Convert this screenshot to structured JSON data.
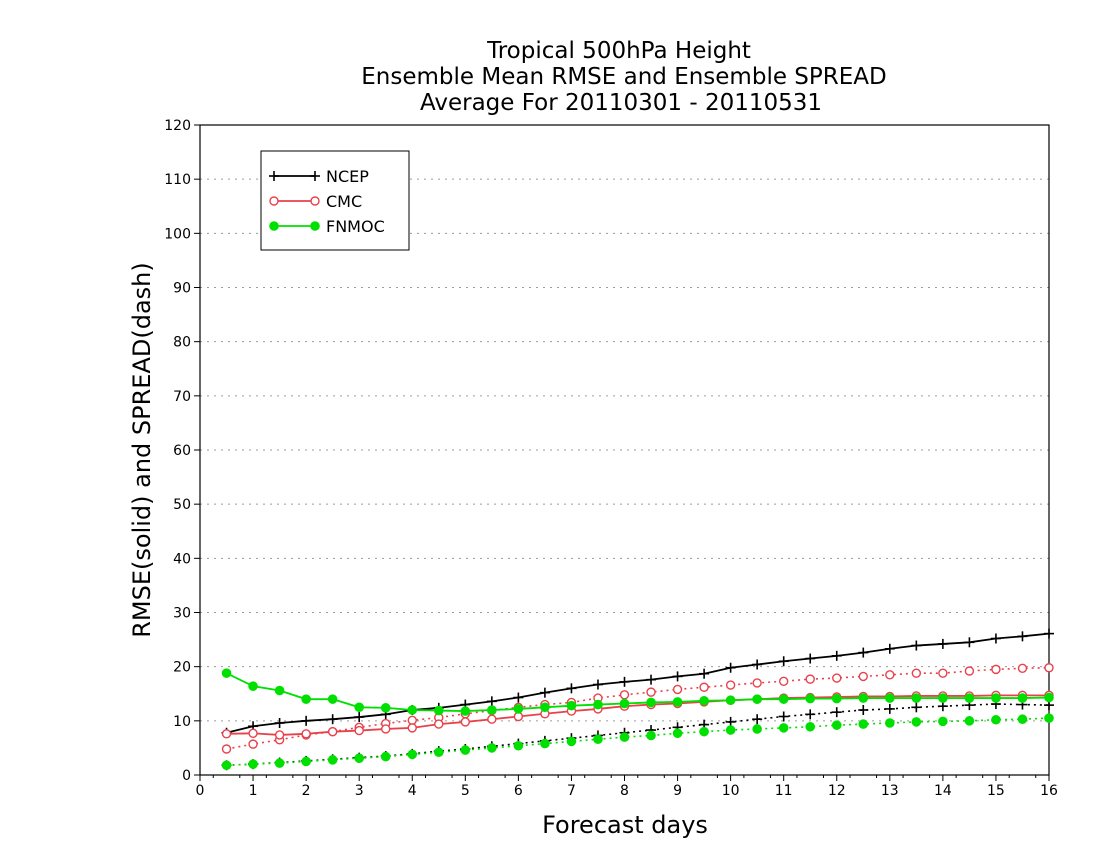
{
  "chart_data": {
    "type": "line",
    "title_lines": [
      "Tropical 500hPa Height",
      "Ensemble Mean RMSE and Ensemble SPREAD",
      "Average For 20110301 - 20110531"
    ],
    "xlabel": "Forecast days",
    "ylabel": "RMSE(solid) and SPREAD(dash)",
    "xlim": [
      0,
      16
    ],
    "ylim": [
      0,
      120
    ],
    "x_ticks": [
      0,
      1,
      2,
      3,
      4,
      5,
      6,
      7,
      8,
      9,
      10,
      11,
      12,
      13,
      14,
      15,
      16
    ],
    "y_ticks": [
      0,
      10,
      20,
      30,
      40,
      50,
      60,
      70,
      80,
      90,
      100,
      110,
      120
    ],
    "grid": "horizontal-dotted",
    "legend_position": "top-left",
    "x": [
      0.5,
      1,
      1.5,
      2,
      2.5,
      3,
      3.5,
      4,
      4.5,
      5,
      5.5,
      6,
      6.5,
      7,
      7.5,
      8,
      8.5,
      9,
      9.5,
      10,
      10.5,
      11,
      11.5,
      12,
      12.5,
      13,
      13.5,
      14,
      14.5,
      15,
      15.5,
      16
    ],
    "series": [
      {
        "name": "NCEP",
        "color": "#000000",
        "marker": "plus",
        "rmse": [
          7.8,
          9.0,
          9.6,
          10.0,
          10.3,
          10.7,
          11.2,
          12.0,
          12.4,
          13.0,
          13.6,
          14.3,
          15.2,
          16.0,
          16.7,
          17.2,
          17.6,
          18.2,
          18.7,
          19.8,
          20.4,
          21.0,
          21.5,
          22.0,
          22.6,
          23.3,
          23.9,
          24.2,
          24.5,
          25.2,
          25.6,
          26.1
        ],
        "spread": [
          1.8,
          2.0,
          2.3,
          2.6,
          2.9,
          3.2,
          3.5,
          3.9,
          4.4,
          4.8,
          5.3,
          5.8,
          6.3,
          6.8,
          7.3,
          7.8,
          8.3,
          8.8,
          9.3,
          9.8,
          10.3,
          10.8,
          11.2,
          11.6,
          12.0,
          12.2,
          12.5,
          12.7,
          12.9,
          13.1,
          13.0,
          12.9
        ]
      },
      {
        "name": "CMC",
        "color": "#e8414b",
        "marker": "open-circle",
        "rmse": [
          7.6,
          7.7,
          7.4,
          7.6,
          8.0,
          8.2,
          8.5,
          8.7,
          9.4,
          9.8,
          10.3,
          10.8,
          11.3,
          11.8,
          12.2,
          12.7,
          13.0,
          13.2,
          13.5,
          13.8,
          14.0,
          14.2,
          14.3,
          14.4,
          14.5,
          14.5,
          14.6,
          14.6,
          14.6,
          14.7,
          14.7,
          14.7
        ],
        "spread": [
          4.8,
          5.7,
          6.5,
          7.4,
          8.0,
          8.8,
          9.5,
          10.1,
          10.6,
          11.3,
          11.9,
          12.5,
          13.0,
          13.4,
          14.2,
          14.8,
          15.3,
          15.8,
          16.2,
          16.6,
          17.0,
          17.3,
          17.7,
          17.9,
          18.2,
          18.5,
          18.8,
          18.8,
          19.2,
          19.5,
          19.7,
          19.8
        ]
      },
      {
        "name": "FNMOC",
        "color": "#00e000",
        "marker": "filled-circle",
        "rmse": [
          18.8,
          16.4,
          15.6,
          14.0,
          14.0,
          12.5,
          12.4,
          12.0,
          11.9,
          11.8,
          12.0,
          12.2,
          12.5,
          12.8,
          13.0,
          13.2,
          13.4,
          13.5,
          13.7,
          13.8,
          14.0,
          14.0,
          14.1,
          14.1,
          14.2,
          14.2,
          14.2,
          14.2,
          14.2,
          14.2,
          14.2,
          14.3
        ],
        "spread": [
          1.8,
          2.0,
          2.2,
          2.5,
          2.8,
          3.1,
          3.4,
          3.8,
          4.2,
          4.6,
          5.0,
          5.4,
          5.8,
          6.2,
          6.6,
          7.0,
          7.3,
          7.7,
          8.0,
          8.3,
          8.5,
          8.7,
          8.9,
          9.2,
          9.4,
          9.6,
          9.8,
          9.9,
          10.0,
          10.2,
          10.3,
          10.5
        ]
      }
    ]
  }
}
